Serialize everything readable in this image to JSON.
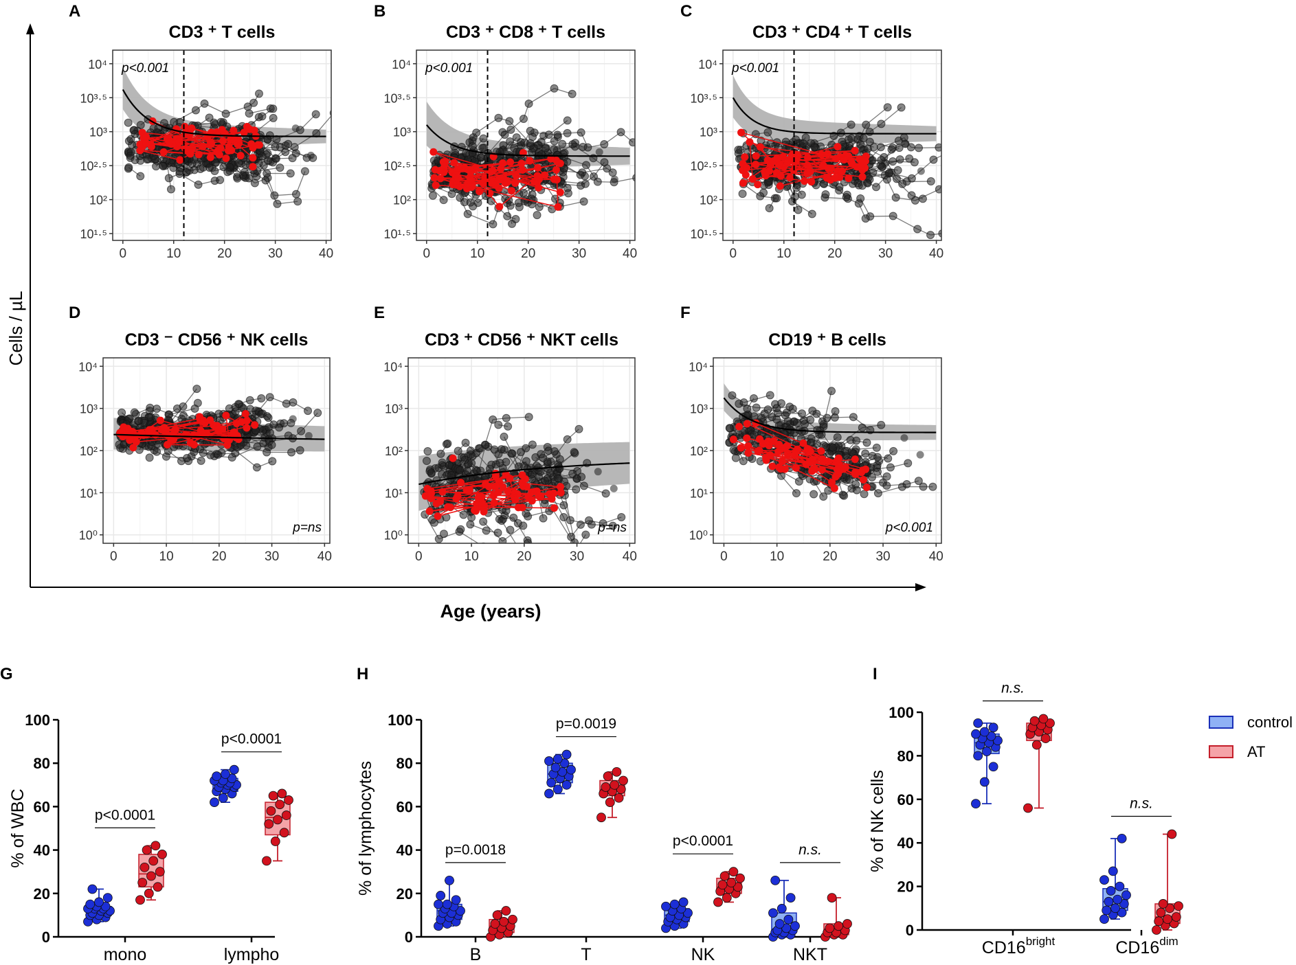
{
  "figure": {
    "y_label": "Cells / µL",
    "x_label": "Age (years)"
  },
  "colors": {
    "black_points": "#222222",
    "red_points": "#ee1111",
    "band": "#b3b3b3",
    "grid": "#e8e8e8",
    "control_fill": "#8fb1f5",
    "control_stroke": "#1a2fb8",
    "control_dot": "#1c2fd6",
    "at_fill": "#f5a3a8",
    "at_stroke": "#c41e2a",
    "at_dot": "#d2121e"
  },
  "chart_data": [
    {
      "id": "A",
      "panel_label": "A",
      "title": "CD3 ⁺ T cells",
      "type": "scatter",
      "xticks": [
        0,
        10,
        20,
        30,
        40
      ],
      "xlim": [
        -2,
        41
      ],
      "ylim_log10": [
        1.4,
        4.2
      ],
      "ytick_labels": [
        "10⁴",
        "10³·⁵",
        "10³",
        "10²·⁵",
        "10²",
        "10¹·⁵"
      ],
      "ytick_values": [
        4,
        3.5,
        3,
        2.5,
        2,
        1.5
      ],
      "dashed_vline_age": 12,
      "p_text": "p<0.001",
      "p_pos": "top-left",
      "fit": {
        "level": 2.93,
        "initial": 3.62,
        "decay": 5,
        "band_start": 0.42,
        "band_end": 0.2,
        "x_end": 40
      },
      "cloud": {
        "center": 2.75,
        "spread": 0.18,
        "n_black": 210,
        "n_red": 75,
        "red_center": 2.83
      }
    },
    {
      "id": "B",
      "panel_label": "B",
      "title": "CD3 ⁺ CD8 ⁺ T cells",
      "type": "scatter",
      "xticks": [
        0,
        10,
        20,
        30,
        40
      ],
      "xlim": [
        -2,
        41
      ],
      "ylim_log10": [
        1.4,
        4.2
      ],
      "ytick_labels": [
        "10⁴",
        "10³·⁵",
        "10³",
        "10²·⁵",
        "10²",
        "10¹·⁵"
      ],
      "ytick_values": [
        4,
        3.5,
        3,
        2.5,
        2,
        1.5
      ],
      "dashed_vline_age": 12,
      "p_text": "p<0.001",
      "p_pos": "top-left",
      "fit": {
        "level": 2.64,
        "initial": 3.1,
        "decay": 5,
        "band_start": 0.45,
        "band_end": 0.25,
        "x_end": 40
      },
      "cloud": {
        "center": 2.4,
        "spread": 0.22,
        "n_black": 210,
        "n_red": 75,
        "red_center": 2.35
      }
    },
    {
      "id": "C",
      "panel_label": "C",
      "title": "CD3 ⁺ CD4 ⁺ T cells",
      "type": "scatter",
      "xticks": [
        0,
        10,
        20,
        30,
        40
      ],
      "xlim": [
        -2,
        41
      ],
      "ylim_log10": [
        1.4,
        4.2
      ],
      "ytick_labels": [
        "10⁴",
        "10³·⁵",
        "10³",
        "10²·⁵",
        "10²",
        "10¹·⁵"
      ],
      "ytick_values": [
        4,
        3.5,
        3,
        2.5,
        2,
        1.5
      ],
      "dashed_vline_age": 12,
      "p_text": "p<0.001",
      "p_pos": "top-left",
      "fit": {
        "level": 2.97,
        "initial": 3.5,
        "decay": 4,
        "band_start": 0.42,
        "band_end": 0.22,
        "x_end": 40
      },
      "cloud": {
        "center": 2.52,
        "spread": 0.2,
        "n_black": 210,
        "n_red": 75,
        "red_center": 2.5
      }
    },
    {
      "id": "D",
      "panel_label": "D",
      "title": "CD3 ⁻ CD56 ⁺ NK cells",
      "type": "scatter",
      "xticks": [
        0,
        10,
        20,
        30,
        40
      ],
      "xlim": [
        -2,
        41
      ],
      "ylim_log10": [
        -0.2,
        4.2
      ],
      "ytick_labels": [
        "10⁴",
        "10³",
        "10²",
        "10¹",
        "10⁰"
      ],
      "ytick_values": [
        4,
        3,
        2,
        1,
        0
      ],
      "dashed_vline_age": null,
      "p_text": "p=ns",
      "p_pos": "bottom-right",
      "fit": {
        "level": 2.15,
        "initial": 2.38,
        "decay": 60,
        "band_start": 0.55,
        "band_end": 0.5,
        "x_end": 40
      },
      "cloud": {
        "center": 2.45,
        "spread": 0.25,
        "n_black": 210,
        "n_red": 70,
        "red_center": 2.4
      }
    },
    {
      "id": "E",
      "panel_label": "E",
      "title": "CD3 ⁺ CD56 ⁺ NKT cells",
      "type": "scatter",
      "xticks": [
        0,
        10,
        20,
        30,
        40
      ],
      "xlim": [
        -2,
        41
      ],
      "ylim_log10": [
        -0.2,
        4.2
      ],
      "ytick_labels": [
        "10⁴",
        "10³",
        "10²",
        "10¹",
        "10⁰"
      ],
      "ytick_values": [
        4,
        3,
        2,
        1,
        0
      ],
      "dashed_vline_age": null,
      "p_text": "p=ns",
      "p_pos": "bottom-right",
      "fit": {
        "level": 1.83,
        "initial": 1.2,
        "decay": 25,
        "band_start": 1.1,
        "band_end": 0.95,
        "x_end": 40
      },
      "cloud": {
        "center": 1.2,
        "spread": 0.45,
        "n_black": 190,
        "n_red": 65,
        "red_center": 0.95
      }
    },
    {
      "id": "F",
      "panel_label": "F",
      "title": "CD19 ⁺ B cells",
      "type": "scatter",
      "xticks": [
        0,
        10,
        20,
        30,
        40
      ],
      "xlim": [
        -2,
        41
      ],
      "ylim_log10": [
        -0.2,
        4.2
      ],
      "ytick_labels": [
        "10⁴",
        "10³",
        "10²",
        "10¹",
        "10⁰"
      ],
      "ytick_values": [
        4,
        3,
        2,
        1,
        0
      ],
      "dashed_vline_age": null,
      "p_text": "p<0.001",
      "p_pos": "bottom-right",
      "fit": {
        "level": 2.43,
        "initial": 3.25,
        "decay": 5,
        "band_start": 0.45,
        "band_end": 0.35,
        "x_end": 40
      },
      "cloud": {
        "center": 2.0,
        "spread": 0.3,
        "n_black": 200,
        "n_red": 70,
        "red_center": 1.95,
        "slope": -0.04
      }
    },
    {
      "id": "G",
      "panel_label": "G",
      "type": "box",
      "ylabel": "% of WBC",
      "ylim": [
        0,
        100
      ],
      "yticks": [
        0,
        20,
        40,
        60,
        80,
        100
      ],
      "categories": [
        "mono",
        "lympho"
      ],
      "series": [
        {
          "name": "control",
          "boxes": [
            {
              "min": 7,
              "q1": 10,
              "median": 12,
              "q3": 14,
              "max": 22,
              "points": [
                7,
                8,
                9,
                10,
                10,
                11,
                11,
                12,
                12,
                13,
                13,
                13,
                14,
                14,
                15,
                16,
                18,
                22
              ]
            },
            {
              "min": 62,
              "q1": 67,
              "median": 70,
              "q3": 73,
              "max": 77,
              "points": [
                62,
                64,
                66,
                67,
                68,
                69,
                69,
                70,
                70,
                71,
                71,
                72,
                72,
                73,
                74,
                75,
                77
              ]
            }
          ]
        },
        {
          "name": "AT",
          "boxes": [
            {
              "min": 17,
              "q1": 23,
              "median": 29,
              "q3": 38,
              "max": 42,
              "points": [
                17,
                20,
                23,
                25,
                28,
                30,
                32,
                35,
                38,
                40,
                42
              ]
            },
            {
              "min": 35,
              "q1": 47,
              "median": 55,
              "q3": 62,
              "max": 66,
              "points": [
                35,
                44,
                48,
                52,
                54,
                56,
                58,
                61,
                63,
                65,
                66
              ]
            }
          ]
        }
      ],
      "comparisons": [
        "p<0.0001",
        "p<0.0001"
      ]
    },
    {
      "id": "H",
      "panel_label": "H",
      "type": "box",
      "ylabel": "% of lymphocytes",
      "ylim": [
        0,
        100
      ],
      "yticks": [
        0,
        20,
        40,
        60,
        80,
        100
      ],
      "categories": [
        "B",
        "T",
        "NK",
        "NKT"
      ],
      "series": [
        {
          "name": "control",
          "boxes": [
            {
              "min": 5,
              "q1": 8,
              "median": 12,
              "q3": 15,
              "max": 26,
              "points": [
                5,
                6,
                7,
                8,
                9,
                10,
                11,
                11,
                12,
                13,
                14,
                15,
                15,
                17,
                19,
                26
              ]
            },
            {
              "min": 66,
              "q1": 71,
              "median": 75,
              "q3": 80,
              "max": 84,
              "points": [
                66,
                68,
                70,
                71,
                73,
                74,
                75,
                76,
                77,
                78,
                80,
                81,
                82,
                84
              ]
            },
            {
              "min": 4,
              "q1": 7,
              "median": 10,
              "q3": 13,
              "max": 16,
              "points": [
                4,
                5,
                6,
                7,
                8,
                9,
                9,
                10,
                11,
                12,
                13,
                14,
                15,
                16
              ]
            },
            {
              "min": 0,
              "q1": 2,
              "median": 3,
              "q3": 11,
              "max": 26,
              "points": [
                0,
                1,
                1,
                2,
                2,
                3,
                3,
                4,
                5,
                6,
                8,
                11,
                13,
                18,
                26
              ]
            }
          ]
        },
        {
          "name": "AT",
          "boxes": [
            {
              "min": 0,
              "q1": 2,
              "median": 5,
              "q3": 8,
              "max": 12,
              "points": [
                0,
                1,
                2,
                3,
                4,
                5,
                6,
                7,
                8,
                10,
                12
              ]
            },
            {
              "min": 55,
              "q1": 65,
              "median": 68,
              "q3": 72,
              "max": 76,
              "points": [
                55,
                62,
                64,
                66,
                67,
                68,
                69,
                70,
                72,
                74,
                76
              ]
            },
            {
              "min": 16,
              "q1": 20,
              "median": 23,
              "q3": 27,
              "max": 30,
              "points": [
                16,
                18,
                20,
                21,
                22,
                23,
                24,
                25,
                27,
                28,
                30
              ]
            },
            {
              "min": 0,
              "q1": 1,
              "median": 2,
              "q3": 6,
              "max": 18,
              "points": [
                0,
                1,
                1,
                2,
                2,
                3,
                4,
                5,
                6,
                18
              ]
            }
          ]
        }
      ],
      "comparisons": [
        "p=0.0018",
        "p=0.0019",
        "p<0.0001",
        "n.s."
      ]
    },
    {
      "id": "I",
      "panel_label": "I",
      "type": "box",
      "ylabel": "% of NK cells",
      "ylim": [
        0,
        100
      ],
      "yticks": [
        0,
        20,
        40,
        60,
        80,
        100
      ],
      "categories": [
        "CD16",
        "CD16"
      ],
      "category_sup": [
        "bright",
        "dim"
      ],
      "series": [
        {
          "name": "control",
          "boxes": [
            {
              "min": 58,
              "q1": 81,
              "median": 86,
              "q3": 90,
              "max": 95,
              "points": [
                58,
                68,
                75,
                80,
                82,
                84,
                85,
                86,
                87,
                88,
                89,
                90,
                91,
                93,
                95
              ]
            },
            {
              "min": 5,
              "q1": 9,
              "median": 13,
              "q3": 19,
              "max": 42,
              "points": [
                5,
                7,
                8,
                9,
                10,
                12,
                13,
                14,
                16,
                18,
                20,
                23,
                27,
                42
              ]
            }
          ]
        },
        {
          "name": "AT",
          "boxes": [
            {
              "min": 56,
              "q1": 87,
              "median": 92,
              "q3": 95,
              "max": 97,
              "points": [
                56,
                85,
                88,
                90,
                91,
                92,
                93,
                94,
                95,
                96,
                97
              ]
            },
            {
              "min": 0,
              "q1": 3,
              "median": 6,
              "q3": 12,
              "max": 44,
              "points": [
                0,
                2,
                3,
                4,
                5,
                6,
                8,
                10,
                11,
                12,
                44
              ]
            }
          ]
        }
      ],
      "comparisons": [
        "n.s.",
        "n.s."
      ]
    }
  ],
  "legend": {
    "items": [
      {
        "label": "control",
        "fill": "#8fb1f5",
        "stroke": "#1a2fb8"
      },
      {
        "label": "AT",
        "fill": "#f5a3a8",
        "stroke": "#c41e2a"
      }
    ]
  }
}
